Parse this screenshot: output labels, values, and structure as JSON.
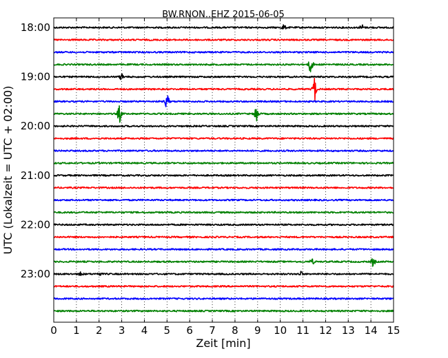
{
  "chart_data": {
    "type": "line",
    "title": "BW.RNON..EHZ 2015-06-05",
    "xlabel": "Zeit  [min]",
    "ylabel": "UTC (Lokalzeit = UTC + 02:00)",
    "xlim": [
      0,
      15
    ],
    "x_ticks": [
      "0",
      "1",
      "2",
      "3",
      "4",
      "5",
      "6",
      "7",
      "8",
      "9",
      "10",
      "11",
      "12",
      "13",
      "14",
      "15"
    ],
    "y_tick_labels": [
      "18:00",
      "19:00",
      "20:00",
      "21:00",
      "22:00",
      "23:00"
    ],
    "grid": "vertical dotted",
    "trace_colors": [
      "#000000",
      "#ff0000",
      "#0000ff",
      "#008000"
    ],
    "traces": [
      {
        "start": "18:00",
        "events": [
          {
            "t": 10.15,
            "amp": 0.5
          },
          {
            "t": 13.6,
            "amp": 0.5
          }
        ]
      },
      {
        "start": "18:15",
        "events": []
      },
      {
        "start": "18:30",
        "events": []
      },
      {
        "start": "18:45",
        "events": [
          {
            "t": 11.35,
            "amp": 1.8
          }
        ]
      },
      {
        "start": "19:00",
        "events": [
          {
            "t": 3.0,
            "amp": 0.6
          }
        ]
      },
      {
        "start": "19:15",
        "events": [
          {
            "t": 11.5,
            "amp": 2.2
          }
        ]
      },
      {
        "start": "19:30",
        "events": [
          {
            "t": 5.0,
            "amp": 1.4
          }
        ]
      },
      {
        "start": "19:45",
        "events": [
          {
            "t": 2.9,
            "amp": 1.5
          },
          {
            "t": 8.95,
            "amp": 1.7
          }
        ]
      },
      {
        "start": "20:00",
        "events": []
      },
      {
        "start": "20:15",
        "events": []
      },
      {
        "start": "20:30",
        "events": []
      },
      {
        "start": "20:45",
        "events": []
      },
      {
        "start": "21:00",
        "events": []
      },
      {
        "start": "21:15",
        "events": []
      },
      {
        "start": "21:30",
        "events": []
      },
      {
        "start": "21:45",
        "events": []
      },
      {
        "start": "22:00",
        "events": []
      },
      {
        "start": "22:15",
        "events": []
      },
      {
        "start": "22:30",
        "events": []
      },
      {
        "start": "22:45",
        "events": [
          {
            "t": 11.4,
            "amp": 0.5
          },
          {
            "t": 14.1,
            "amp": 0.8
          }
        ]
      },
      {
        "start": "23:00",
        "events": [
          {
            "t": 1.2,
            "amp": 0.4
          },
          {
            "t": 2.0,
            "amp": 0.3
          },
          {
            "t": 10.9,
            "amp": 0.4
          }
        ]
      },
      {
        "start": "23:15",
        "events": []
      },
      {
        "start": "23:30",
        "events": []
      },
      {
        "start": "23:45",
        "events": []
      }
    ]
  }
}
